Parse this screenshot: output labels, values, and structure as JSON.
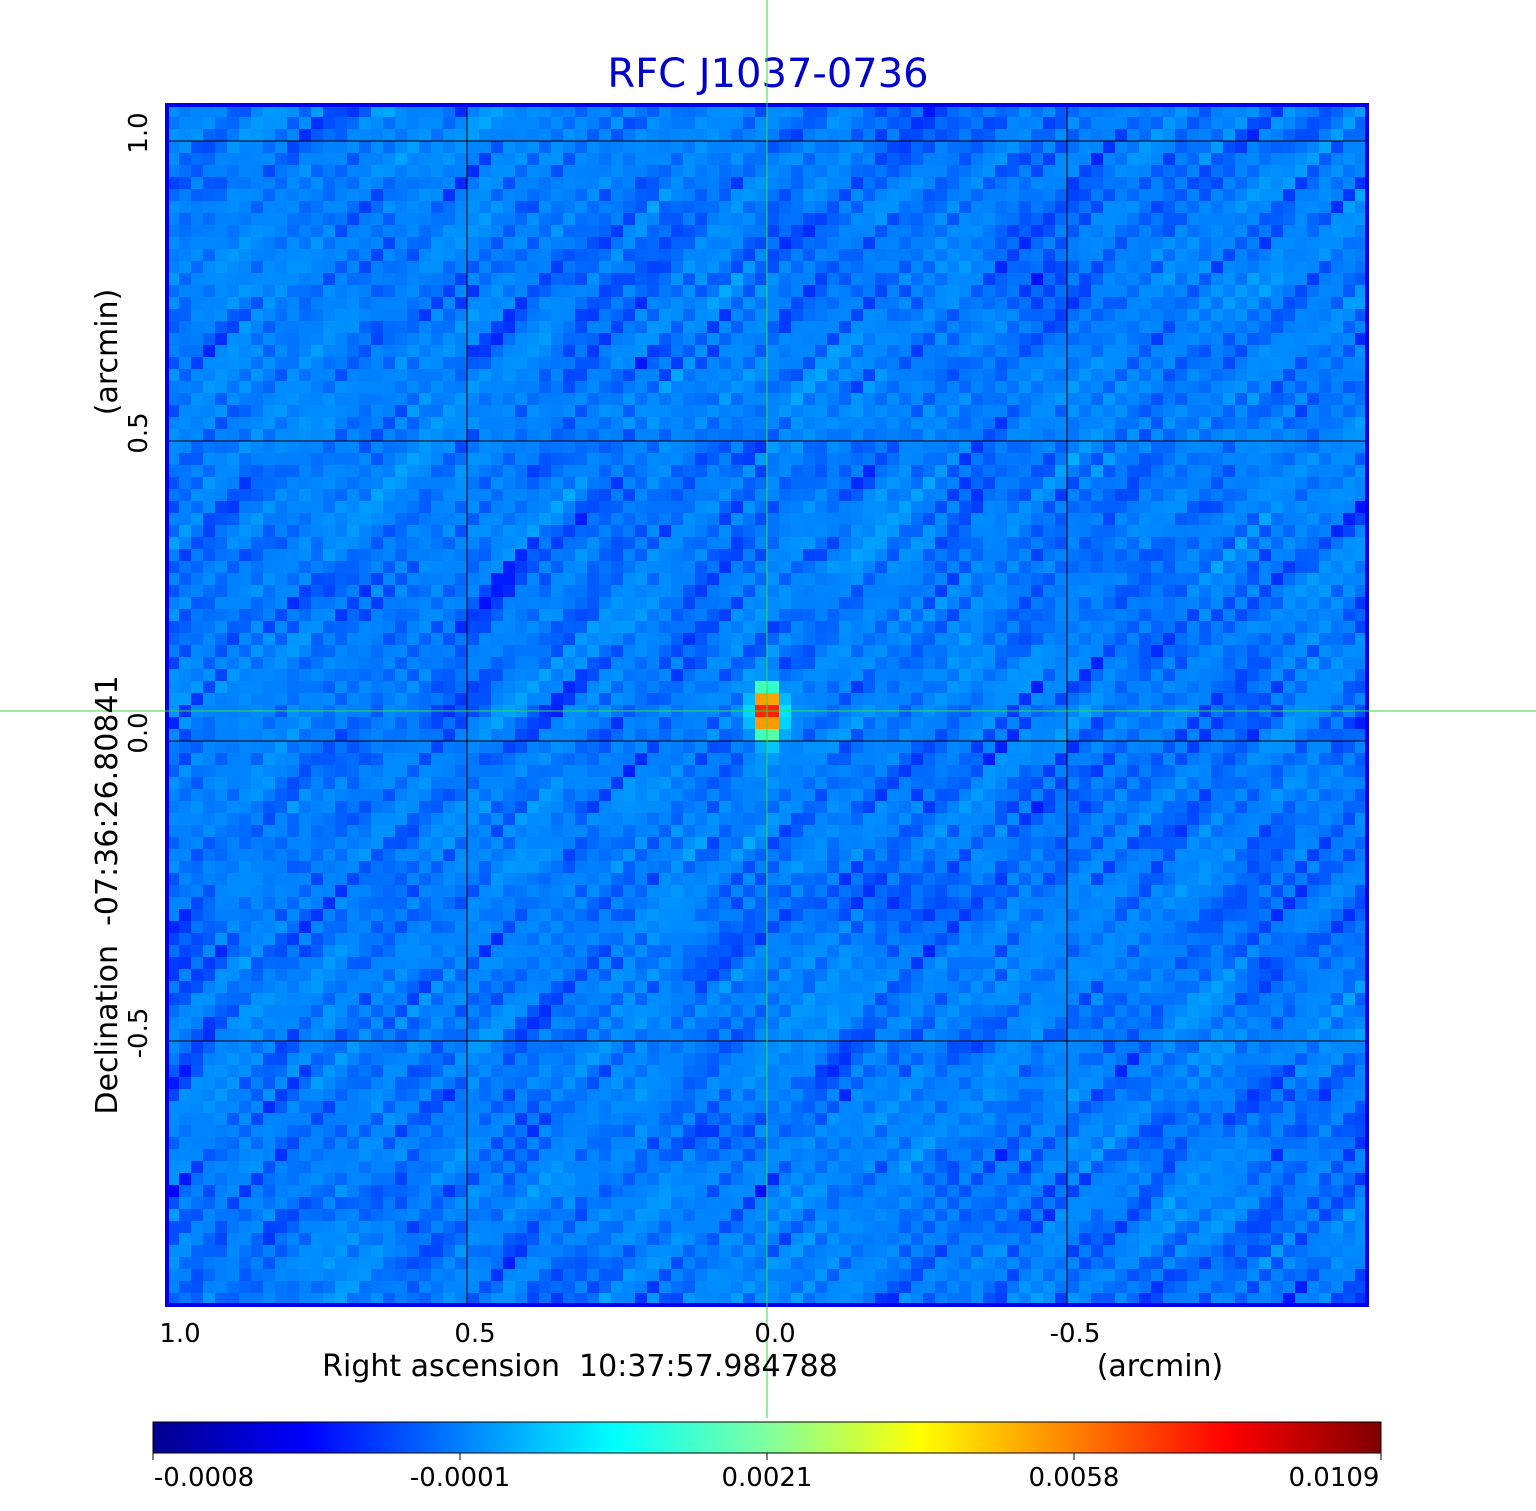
{
  "chart_data": {
    "type": "heatmap",
    "title": "RFC J1037-0736",
    "xlabel": "Right ascension  10:37:57.984788",
    "xunit": "(arcmin)",
    "ylabel": "Declination  -07:36:26.80841",
    "yunit": "(arcmin)",
    "x_ticks": [
      "1.0",
      "0.5",
      "0.0",
      "-0.5"
    ],
    "y_ticks": [
      "1.0",
      "0.5",
      "0.0",
      "-0.5"
    ],
    "x_range": [
      1.0,
      -1.0
    ],
    "y_range": [
      -0.94,
      1.06
    ],
    "grid": true,
    "crosshair": {
      "x": 0.0,
      "y": 0.05,
      "color": "#33dd33"
    },
    "source_peak": {
      "x": 0.0,
      "y": 0.05,
      "value": 0.0109
    },
    "noise_level": -0.0001,
    "colormap": "jet",
    "colorbar": {
      "position": "bottom",
      "ticks": [
        "-0.0008",
        "-0.0001",
        "0.0021",
        "0.0058",
        "0.0109"
      ],
      "range": [
        -0.0008,
        0.0109
      ]
    },
    "frame_color": "#0000ee"
  }
}
